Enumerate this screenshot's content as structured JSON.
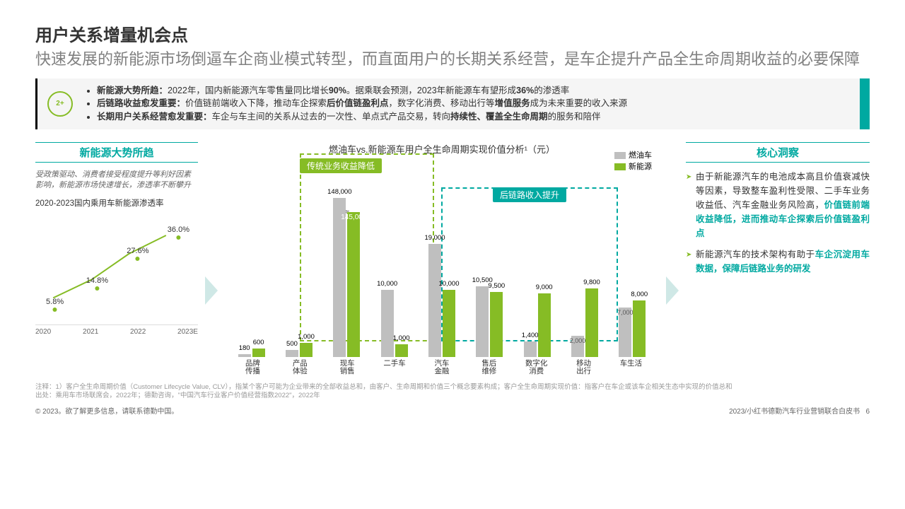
{
  "title": "用户关系增量机会点",
  "subtitle": "快速发展的新能源市场倒逼车企商业模式转型，而直面用户的长期关系经营，是车企提升产品全生命周期收益的必要保障",
  "banner": {
    "icon_label": "2+",
    "bullets": [
      {
        "b": "新能源大势所趋：",
        "t": "2022年，国内新能源汽车零售量同比增长",
        "b2": "90%",
        "t2": "。据乘联会预测，2023年新能源车有望形成",
        "b3": "36%",
        "t3": "的渗透率"
      },
      {
        "b": "后链路收益愈发重要：",
        "t": "价值链前端收入下降，推动车企探索",
        "b2": "后价值链盈利点",
        "t2": "，数字化消费、移动出行等",
        "b3": "增值服务",
        "t3": "成为未来重要的收入来源"
      },
      {
        "b": "长期用户关系经营愈发重要：",
        "t": "车企与车主间的关系从过去的一次性、单点式产品交易，转向",
        "b2": "持续性、覆盖全生命周期",
        "t2": "的服务和陪伴",
        "b3": "",
        "t3": ""
      }
    ]
  },
  "left": {
    "heading": "新能源大势所趋",
    "desc": "受政策驱动、消费者接受程度提升等利好因素影响，新能源市场快速增长，渗透率不断攀升",
    "subhead": "2020-2023国内乘用车新能源渗透率",
    "years": [
      "2020",
      "2021",
      "2022",
      "2023E"
    ],
    "values": [
      "5.8%",
      "14.8%",
      "27.6%",
      "36.0%"
    ],
    "points": [
      {
        "x": 12,
        "y": 88
      },
      {
        "x": 38,
        "y": 68
      },
      {
        "x": 63,
        "y": 40
      },
      {
        "x": 88,
        "y": 20
      }
    ],
    "line_color": "#86bc25"
  },
  "mid": {
    "chart_title": "燃油车vs.新能源车用户全生命周期实现价值分析¹（元）",
    "tag1": "传统业务收益降低",
    "tag2": "后链路收入提升",
    "legend": {
      "gas": "燃油车",
      "ev": "新能源"
    },
    "colors": {
      "gas": "#bfbfbf",
      "ev": "#86bc25",
      "box1": "#86bc25",
      "box2": "#00a9a1"
    },
    "categories": [
      "品牌\n传播",
      "产品\n体验",
      "现车\n销售",
      "二手车",
      "汽车\n金融",
      "售后\n维修",
      "数字化\n消费",
      "移动\n出行",
      "车生活"
    ],
    "bars": [
      {
        "gas": 180,
        "ev": 600,
        "gh": 4,
        "eh": 12,
        "gl": "180",
        "el": "600"
      },
      {
        "gas": 500,
        "ev": 1000,
        "gh": 10,
        "eh": 20,
        "gl": "500",
        "el": "1,000"
      },
      {
        "gas": 148000,
        "ev": 145000,
        "gh": 225,
        "eh": 205,
        "gl": "148,000",
        "el": "145,000",
        "inside": "145,000",
        "break": true
      },
      {
        "gas": 10000,
        "ev": 1000,
        "gh": 95,
        "eh": 18,
        "gl": "10,000",
        "el": "1,000"
      },
      {
        "gas": 19000,
        "ev": 10000,
        "gh": 160,
        "eh": 95,
        "gl": "19,000",
        "el": "10,000"
      },
      {
        "gas": 10500,
        "ev": 9500,
        "gh": 100,
        "eh": 92,
        "gl": "10,500",
        "el": "9,500"
      },
      {
        "gas": 1400,
        "ev": 9000,
        "gh": 22,
        "eh": 90,
        "gl": "1,400",
        "el": "9,000"
      },
      {
        "gas": 2000,
        "ev": 9800,
        "gh": 30,
        "eh": 97,
        "gl": "2,000",
        "el": "9,800",
        "gas_inside": "2,000"
      },
      {
        "gas": 7000,
        "ev": 8000,
        "gh": 70,
        "eh": 80,
        "gl": "7,000",
        "el": "8,000",
        "gas_inside": "7,000"
      }
    ]
  },
  "right": {
    "heading": "核心洞察",
    "items": [
      {
        "pre": "由于新能源汽车的电池成本高且价值衰减快等因素，导致整车盈利性受限、二手车业务收益低、汽车金融业务风险高，",
        "hl": "价值链前端收益降低，进而推动车企探索后价值链盈利点"
      },
      {
        "pre": "新能源汽车的技术架构有助于",
        "hl": "车企沉淀用车数据，保障后链路业务的研发"
      }
    ]
  },
  "footnote": "注释：1）客户全生命周期价值（Customer Lifecycle Value, CLV），指某个客户可能为企业带来的全部收益总和，由客户、生命周期和价值三个概念要素构成；客户全生命周期实现价值：指客户在车企或该车企相关生态中实现的价值总和\n出处：乘用车市场联席会，2022年；德勤咨询，\"中国汽车行业客户价值经营指数2022\"，2022年",
  "footer_left": "© 2023。欲了解更多信息，请联系德勤中国。",
  "footer_right": "2023/小红书德勤汽车行业营销联合白皮书",
  "page": "6"
}
